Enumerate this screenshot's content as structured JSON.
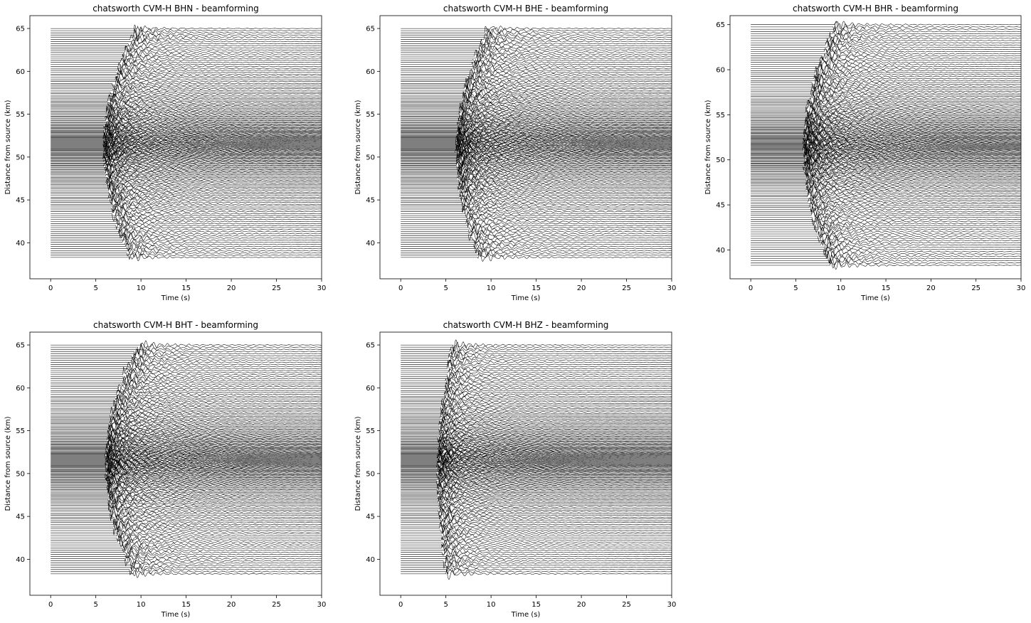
{
  "chart_data": [
    {
      "type": "line",
      "title": "chatsworth CVM-H BHN - beamforming",
      "xlabel": "Time (s)",
      "ylabel": "Distance from source (km)",
      "xlim": [
        -2.3,
        30
      ],
      "ylim": [
        35.8,
        66.5
      ],
      "xticks": [
        0,
        5,
        10,
        15,
        20,
        25,
        30
      ],
      "yticks": [
        40,
        45,
        50,
        55,
        60,
        65
      ],
      "grid": false,
      "legend": "none",
      "trace_color": "#000000",
      "trace_count": 160,
      "trace_distance_range_km": [
        38.3,
        65.0
      ],
      "trace_time_range_s": [
        0,
        30
      ],
      "arrival_time_s": {
        "at_38km": 9.0,
        "at_52km": 6.0,
        "at_65km": 9.5
      },
      "coda_strength": 1.0
    },
    {
      "type": "line",
      "title": "chatsworth CVM-H BHE - beamforming",
      "xlabel": "Time (s)",
      "ylabel": "Distance from source (km)",
      "xlim": [
        -2.3,
        30
      ],
      "ylim": [
        35.8,
        66.5
      ],
      "xticks": [
        0,
        5,
        10,
        15,
        20,
        25,
        30
      ],
      "yticks": [
        40,
        45,
        50,
        55,
        60,
        65
      ],
      "grid": false,
      "legend": "none",
      "trace_color": "#000000",
      "trace_count": 160,
      "trace_distance_range_km": [
        38.3,
        65.0
      ],
      "trace_time_range_s": [
        0,
        30
      ],
      "arrival_time_s": {
        "at_38km": 8.8,
        "at_52km": 6.3,
        "at_65km": 9.7
      },
      "coda_strength": 1.1
    },
    {
      "type": "line",
      "title": "chatsworth CVM-H BHR - beamforming",
      "xlabel": "Time (s)",
      "ylabel": "Distance from source (km)",
      "xlim": [
        -2.3,
        30
      ],
      "ylim": [
        36.8,
        66.0
      ],
      "xticks": [
        0,
        5,
        10,
        15,
        20,
        25,
        30
      ],
      "yticks": [
        40,
        45,
        50,
        55,
        60,
        65
      ],
      "grid": false,
      "legend": "none",
      "trace_color": "#000000",
      "trace_count": 160,
      "trace_distance_range_km": [
        38.3,
        65.0
      ],
      "trace_time_range_s": [
        0,
        30
      ],
      "arrival_time_s": {
        "at_38km": 9.0,
        "at_52km": 6.0,
        "at_65km": 9.5
      },
      "coda_strength": 1.1
    },
    {
      "type": "line",
      "title": "chatsworth CVM-H BHT - beamforming",
      "xlabel": "Time (s)",
      "ylabel": "Distance from source (km)",
      "xlim": [
        -2.3,
        30
      ],
      "ylim": [
        35.8,
        66.5
      ],
      "xticks": [
        0,
        5,
        10,
        15,
        20,
        25,
        30
      ],
      "yticks": [
        40,
        45,
        50,
        55,
        60,
        65
      ],
      "grid": false,
      "legend": "none",
      "trace_color": "#000000",
      "trace_count": 160,
      "trace_distance_range_km": [
        38.3,
        65.0
      ],
      "trace_time_range_s": [
        0,
        30
      ],
      "arrival_time_s": {
        "at_38km": 9.2,
        "at_52km": 6.2,
        "at_65km": 9.8
      },
      "coda_strength": 1.1
    },
    {
      "type": "line",
      "title": "chatsworth CVM-H BHZ - beamforming",
      "xlabel": "Time (s)",
      "ylabel": "Distance from source (km)",
      "xlim": [
        -2.3,
        30
      ],
      "ylim": [
        35.8,
        66.5
      ],
      "xticks": [
        0,
        5,
        10,
        15,
        20,
        25,
        30
      ],
      "yticks": [
        40,
        45,
        50,
        55,
        60,
        65
      ],
      "grid": false,
      "legend": "none",
      "trace_color": "#000000",
      "trace_count": 160,
      "trace_distance_range_km": [
        38.3,
        65.0
      ],
      "trace_time_range_s": [
        0,
        30
      ],
      "arrival_time_s": {
        "at_38km": 5.2,
        "at_52km": 4.2,
        "at_65km": 5.8
      },
      "coda_strength": 0.75
    }
  ]
}
